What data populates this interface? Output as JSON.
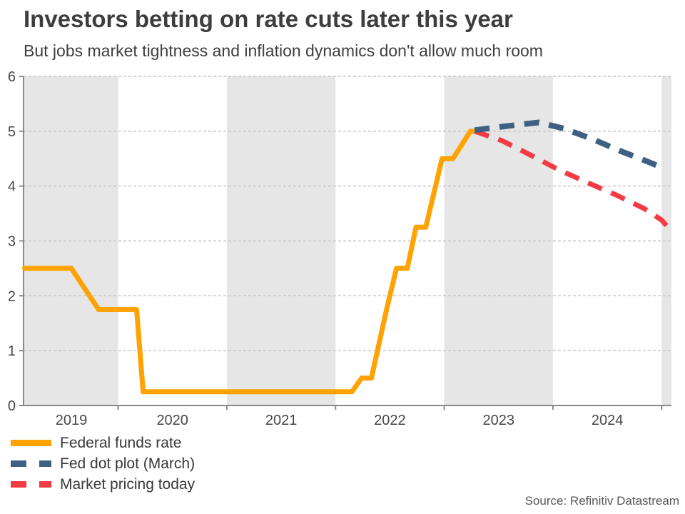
{
  "source": "Source: Refinitiv Datastream",
  "chart_data": {
    "type": "line",
    "title": "Investors betting on rate cuts later this year",
    "subtitle": "But jobs market tightness and inflation dynamics don't allow much room",
    "xlabel": "",
    "ylabel": "",
    "xlim": [
      2019.13,
      2025.09
    ],
    "ylim": [
      0,
      6
    ],
    "y_ticks": [
      0,
      1,
      2,
      3,
      4,
      5,
      6
    ],
    "x_ticks": [
      2020,
      2021,
      2022,
      2023,
      2024,
      2025
    ],
    "x_labels": [
      {
        "text": "2019",
        "x": 2019.57
      },
      {
        "text": "2020",
        "x": 2020.5
      },
      {
        "text": "2021",
        "x": 2021.5
      },
      {
        "text": "2022",
        "x": 2022.5
      },
      {
        "text": "2023",
        "x": 2023.5
      },
      {
        "text": "2024",
        "x": 2024.5
      }
    ],
    "grid": true,
    "legend_position": "bottom-left",
    "shaded_bands": [
      [
        2019.13,
        2020.0
      ],
      [
        2021.0,
        2022.0
      ],
      [
        2023.0,
        2024.0
      ],
      [
        2025.0,
        2025.09
      ]
    ],
    "band_color": "#e6e6e6",
    "grid_color": "#c3c3c3",
    "axis_color": "#8a8a8a",
    "series": [
      {
        "name": "Federal funds rate",
        "color": "#FFA303",
        "style": "solid",
        "width": 7,
        "points": [
          [
            2019.14,
            2.5
          ],
          [
            2019.57,
            2.5
          ],
          [
            2019.82,
            1.75
          ],
          [
            2020.17,
            1.75
          ],
          [
            2020.23,
            0.25
          ],
          [
            2022.15,
            0.25
          ],
          [
            2022.24,
            0.5
          ],
          [
            2022.33,
            0.5
          ],
          [
            2022.47,
            1.75
          ],
          [
            2022.56,
            2.5
          ],
          [
            2022.66,
            2.5
          ],
          [
            2022.74,
            3.25
          ],
          [
            2022.83,
            3.25
          ],
          [
            2022.98,
            4.5
          ],
          [
            2023.08,
            4.5
          ],
          [
            2023.16,
            4.75
          ],
          [
            2023.24,
            5.0
          ],
          [
            2023.3,
            5.0
          ]
        ]
      },
      {
        "name": "Fed dot plot (March)",
        "color": "#3E6183",
        "style": "dashed",
        "width": 8,
        "points": [
          [
            2023.28,
            5.02
          ],
          [
            2023.6,
            5.1
          ],
          [
            2023.87,
            5.16
          ],
          [
            2024.1,
            5.05
          ],
          [
            2024.36,
            4.86
          ],
          [
            2024.62,
            4.64
          ],
          [
            2024.88,
            4.44
          ],
          [
            2025.01,
            4.33
          ]
        ]
      },
      {
        "name": "Market pricing today",
        "color": "#F43B43",
        "style": "dashed",
        "width": 7,
        "points": [
          [
            2023.28,
            5.0
          ],
          [
            2023.53,
            4.83
          ],
          [
            2023.79,
            4.57
          ],
          [
            2024.05,
            4.3
          ],
          [
            2024.31,
            4.07
          ],
          [
            2024.58,
            3.84
          ],
          [
            2024.84,
            3.59
          ],
          [
            2025.0,
            3.38
          ],
          [
            2025.05,
            3.27
          ]
        ]
      }
    ]
  }
}
